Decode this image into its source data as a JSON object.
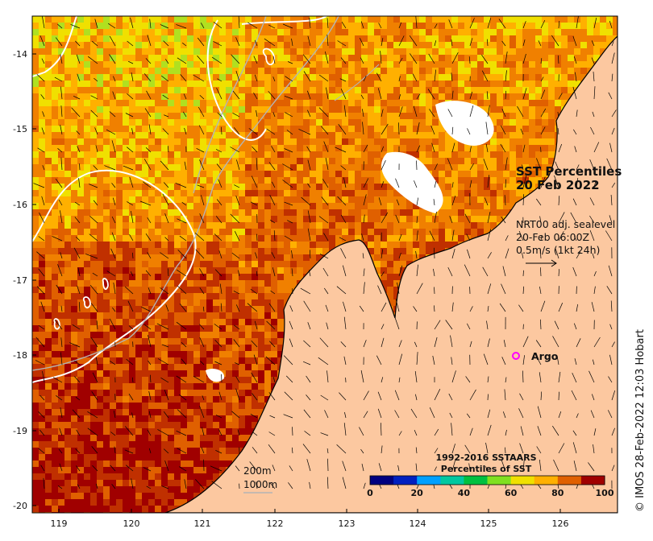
{
  "map": {
    "title_line1": "SST Percentiles",
    "title_line2": "20 Feb 2022",
    "current_info": {
      "line1": "NRT00 adj. sealevel",
      "line2": "20-Feb 06:00Z",
      "line3": "0.5m/s (1kt 24h)"
    },
    "argo_label": "Argo",
    "isobaths": {
      "label1": "200m",
      "label2": "1000m"
    },
    "credit": "© IMOS 28-Feb-2022 12:03 Hobart",
    "colors": {
      "land": "#fcc8a0",
      "argo_marker": "#ff00ff",
      "contour_sealevel": "#ffffff",
      "isobath": "#b4b4b4"
    },
    "x_axis": {
      "ticks": [
        "119",
        "120",
        "121",
        "122",
        "123",
        "124",
        "125",
        "126"
      ]
    },
    "y_axis": {
      "ticks": [
        "-14",
        "-15",
        "-16",
        "-17",
        "-18",
        "-19",
        "-20"
      ]
    }
  },
  "colorbar": {
    "title_line1": "1992-2016 SSTAARS",
    "title_line2": "Percentiles of SST",
    "ticks": [
      "0",
      "20",
      "40",
      "60",
      "80",
      "100"
    ],
    "colors": [
      "#000080",
      "#0020c0",
      "#00a0ff",
      "#00c8a0",
      "#00c040",
      "#80e020",
      "#f0e000",
      "#ffb000",
      "#e06000",
      "#a00000"
    ]
  }
}
